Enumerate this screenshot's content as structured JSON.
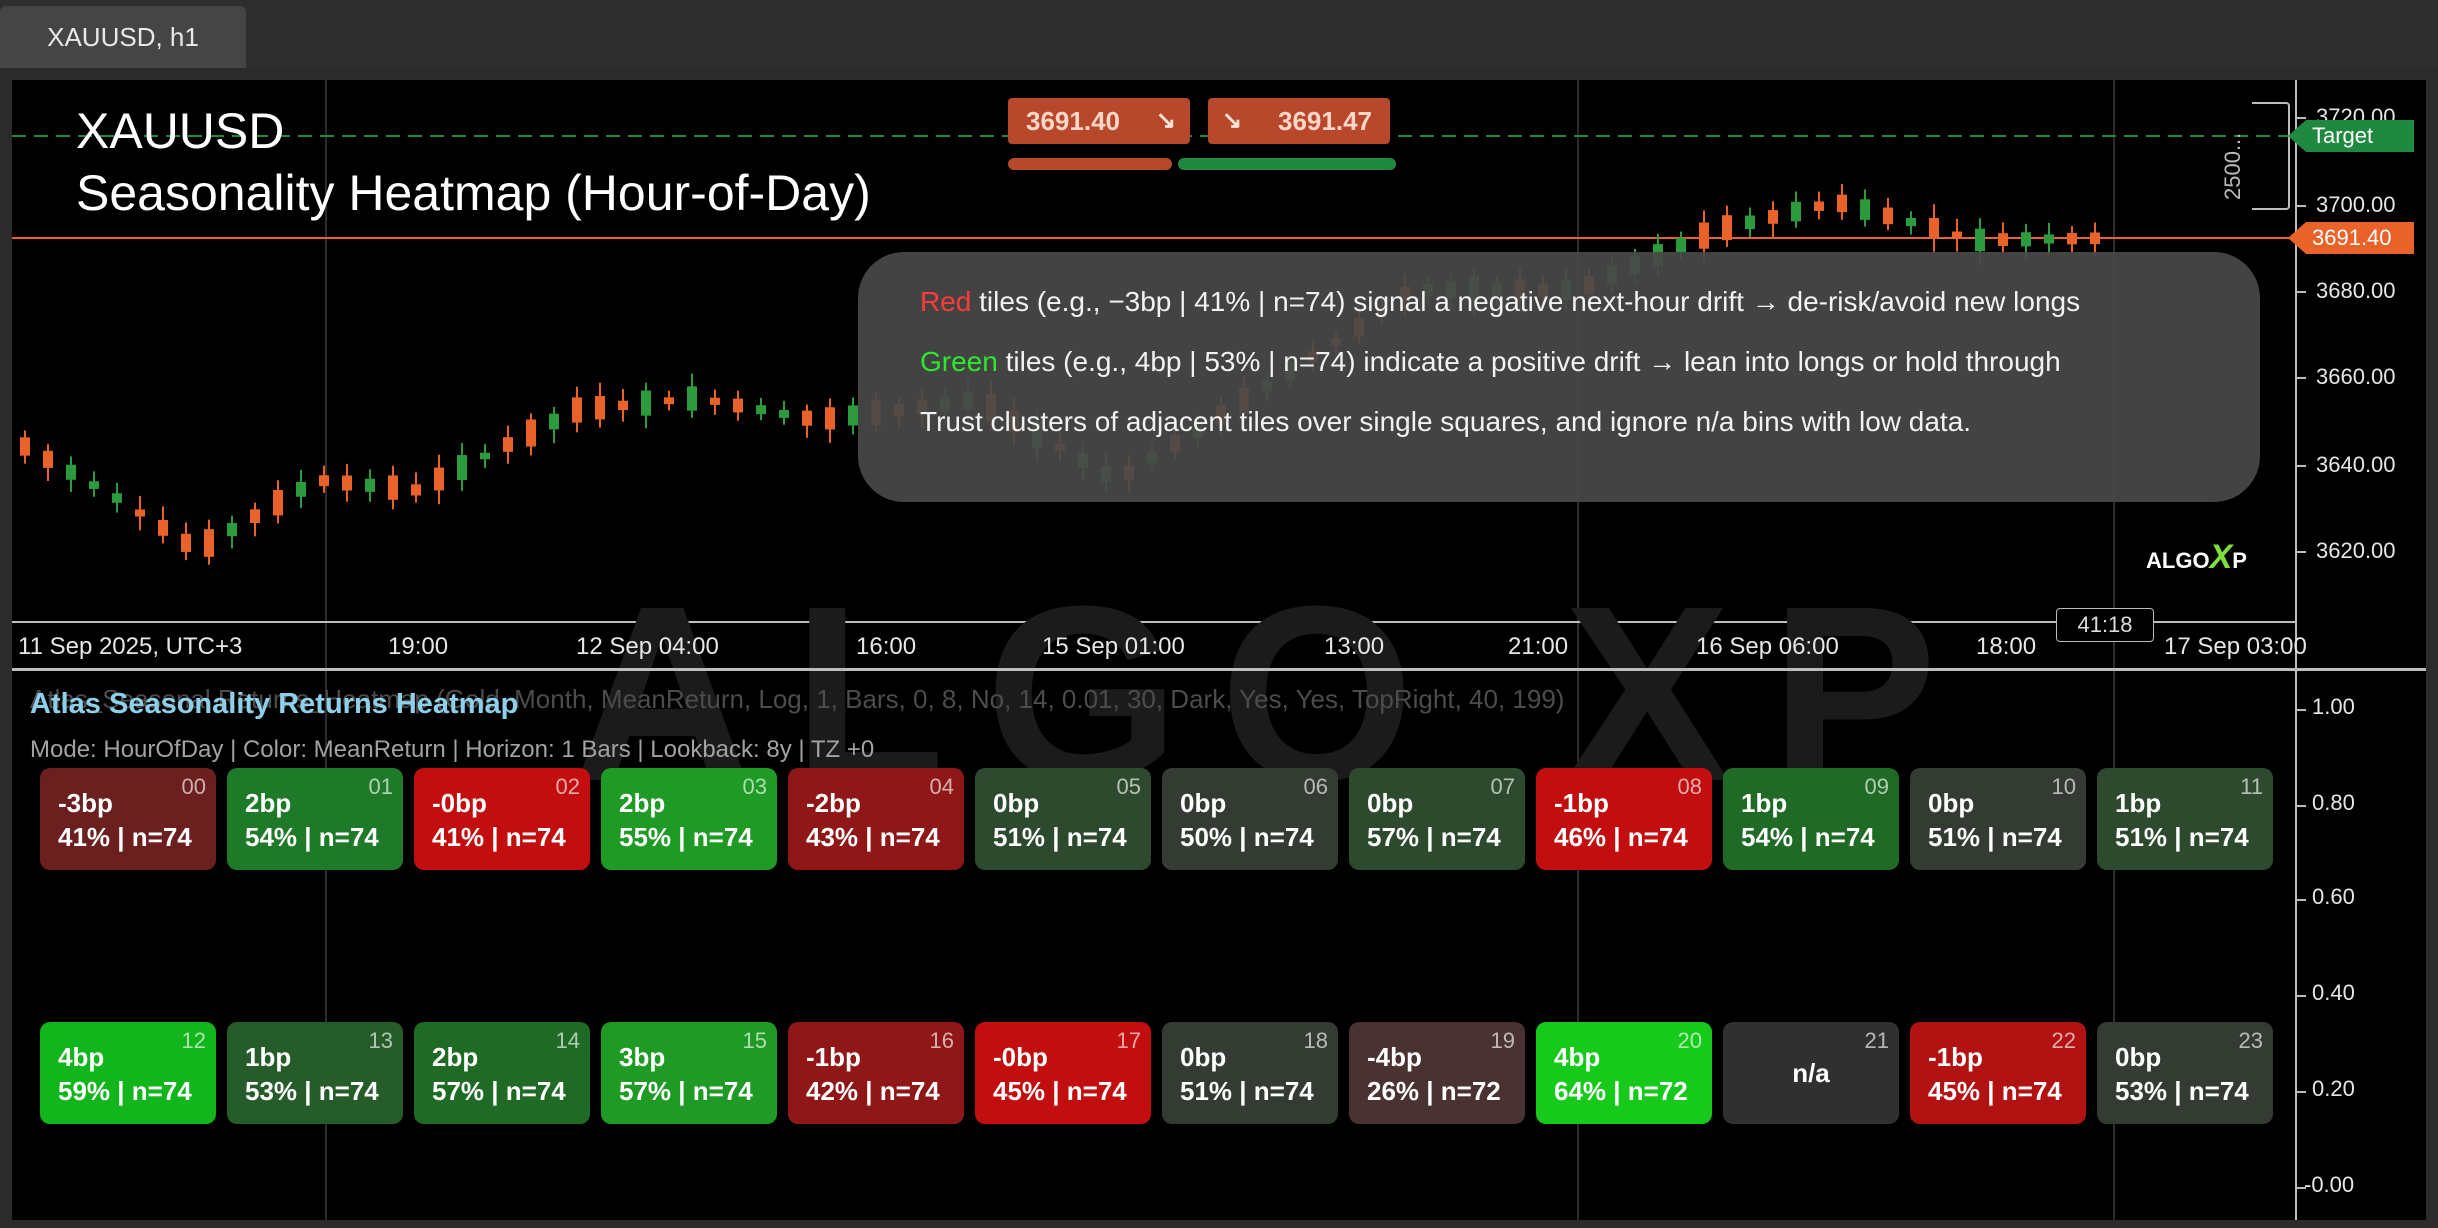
{
  "tab": {
    "label": "XAUUSD, h1"
  },
  "chart": {
    "title_line1": "XAUUSD",
    "title_line2": "Seasonality Heatmap  (Hour-of-Day)",
    "sell_price": "3691.40",
    "buy_price": "3691.47",
    "current_price_tag": "3691.40",
    "target_tag": "Target",
    "range_label": "2500...",
    "countdown": "41:18",
    "watermark": "ALGO XP",
    "logo": {
      "text": "ALGO",
      "x": "X",
      "p": "P"
    },
    "price_axis": [
      "3720.00",
      "3700.00",
      "3680.00",
      "3660.00",
      "3640.00",
      "3620.00"
    ],
    "time_axis": [
      "11 Sep 2025, UTC+3",
      "19:00",
      "12 Sep 04:00",
      "16:00",
      "15 Sep 01:00",
      "13:00",
      "21:00",
      "16 Sep 06:00",
      "18:00",
      "17 Sep 03:00"
    ],
    "colors": {
      "bull": "#2b9b3e",
      "bear": "#e8622a",
      "price_line": "#e8622a",
      "target": "#1f8a3f"
    }
  },
  "info": {
    "line1_accent": "Red",
    "line1_text": " tiles (e.g., −3bp | 41% | n=74) signal a negative next-hour drift → de-risk/avoid new longs",
    "line2_accent": "Green",
    "line2_text": " tiles (e.g., 4bp | 53% | n=74) indicate a positive drift → lean into longs or hold through",
    "line3_text": "Trust clusters of adjacent tiles over single squares, and ignore n/a bins with low data."
  },
  "indicator": {
    "settings": "Atlas_Seasonal Returns_Heatmap (Gold, Month, MeanReturn, Log, 1, Bars, 0, 8, No, 14, 0.01, 30, Dark, Yes, Yes, TopRight, 40, 199)",
    "title": "Atlas Seasonality Returns Heatmap",
    "mode": "Mode: HourOfDay | Color: MeanReturn | Horizon: 1 Bars | Lookback: 8y | TZ +0",
    "axis": [
      "1.00",
      "0.80",
      "0.60",
      "0.40",
      "0.20",
      "-0.00"
    ],
    "tiles": [
      {
        "hour": "00",
        "bp": "-3bp",
        "stat": "41% | n=74",
        "color": "#6b1f1f"
      },
      {
        "hour": "01",
        "bp": "2bp",
        "stat": "54% | n=74",
        "color": "#1e7a28"
      },
      {
        "hour": "02",
        "bp": "-0bp",
        "stat": "41% | n=74",
        "color": "#c20e0e"
      },
      {
        "hour": "03",
        "bp": "2bp",
        "stat": "55% | n=74",
        "color": "#1e9a25"
      },
      {
        "hour": "04",
        "bp": "-2bp",
        "stat": "43% | n=74",
        "color": "#8f1717"
      },
      {
        "hour": "05",
        "bp": "0bp",
        "stat": "51% | n=74",
        "color": "#2d4a2f"
      },
      {
        "hour": "06",
        "bp": "0bp",
        "stat": "50% | n=74",
        "color": "#333b33"
      },
      {
        "hour": "07",
        "bp": "0bp",
        "stat": "57% | n=74",
        "color": "#2d4a2f"
      },
      {
        "hour": "08",
        "bp": "-1bp",
        "stat": "46% | n=74",
        "color": "#c20e0e"
      },
      {
        "hour": "09",
        "bp": "1bp",
        "stat": "54% | n=74",
        "color": "#1f6b26"
      },
      {
        "hour": "10",
        "bp": "0bp",
        "stat": "51% | n=74",
        "color": "#333b33"
      },
      {
        "hour": "11",
        "bp": "1bp",
        "stat": "51% | n=74",
        "color": "#2d4a2f"
      },
      {
        "hour": "12",
        "bp": "4bp",
        "stat": "59% | n=74",
        "color": "#12b51c"
      },
      {
        "hour": "13",
        "bp": "1bp",
        "stat": "53% | n=74",
        "color": "#255c2a"
      },
      {
        "hour": "14",
        "bp": "2bp",
        "stat": "57% | n=74",
        "color": "#1f6b26"
      },
      {
        "hour": "15",
        "bp": "3bp",
        "stat": "57% | n=74",
        "color": "#1e9a25"
      },
      {
        "hour": "16",
        "bp": "-1bp",
        "stat": "42% | n=74",
        "color": "#8f1717"
      },
      {
        "hour": "17",
        "bp": "-0bp",
        "stat": "45% | n=74",
        "color": "#c20e0e"
      },
      {
        "hour": "18",
        "bp": "0bp",
        "stat": "51% | n=74",
        "color": "#333b33"
      },
      {
        "hour": "19",
        "bp": "-4bp",
        "stat": "26% | n=72",
        "color": "#4a3232"
      },
      {
        "hour": "20",
        "bp": "4bp",
        "stat": "64% | n=72",
        "color": "#16c91b"
      },
      {
        "hour": "21",
        "bp": "",
        "stat": "",
        "na": "n/a",
        "color": "#303030"
      },
      {
        "hour": "22",
        "bp": "-1bp",
        "stat": "45% | n=74",
        "color": "#b31212"
      },
      {
        "hour": "23",
        "bp": "0bp",
        "stat": "53% | n=74",
        "color": "#333b33"
      }
    ]
  }
}
